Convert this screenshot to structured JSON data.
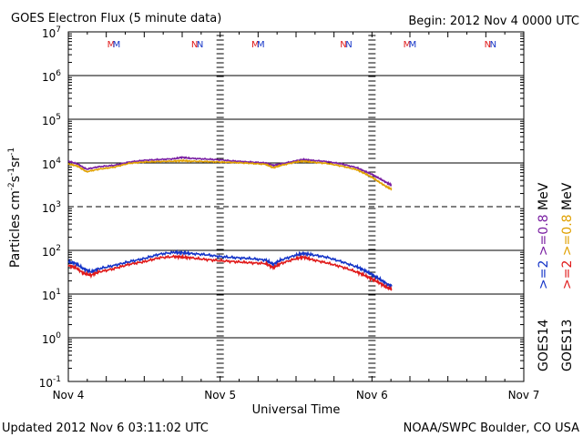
{
  "chart_data": {
    "type": "line",
    "title": "GOES Electron Flux (5 minute data)",
    "begin_label": "Begin: 2012 Nov 4 0000 UTC",
    "xlabel": "Universal Time",
    "ylabel_parts": [
      "Particles cm",
      "-2",
      "s",
      "-1",
      "sr",
      "-1"
    ],
    "y_scale": "log",
    "ylim": [
      -1,
      7
    ],
    "xlim": [
      0,
      3
    ],
    "x_ticks": [
      {
        "x": 0,
        "label": "Nov 4"
      },
      {
        "x": 1,
        "label": "Nov 5"
      },
      {
        "x": 2,
        "label": "Nov 6"
      },
      {
        "x": 3,
        "label": "Nov 7"
      }
    ],
    "y_ticks": [
      {
        "exp": 7,
        "label": "10",
        "sup": "7"
      },
      {
        "exp": 6,
        "label": "10",
        "sup": "6"
      },
      {
        "exp": 5,
        "label": "10",
        "sup": "5"
      },
      {
        "exp": 4,
        "label": "10",
        "sup": "4"
      },
      {
        "exp": 3,
        "label": "10",
        "sup": "3"
      },
      {
        "exp": 2,
        "label": "10",
        "sup": "2"
      },
      {
        "exp": 1,
        "label": "10",
        "sup": "1"
      },
      {
        "exp": 0,
        "label": "10",
        "sup": "0"
      },
      {
        "exp": -1,
        "label": "10",
        "sup": "-1"
      }
    ],
    "threshold_exp": 3,
    "markers": [
      {
        "x": 0.3,
        "text": "M"
      },
      {
        "x": 0.85,
        "text": "N"
      },
      {
        "x": 1.25,
        "text": "M"
      },
      {
        "x": 1.83,
        "text": "N"
      },
      {
        "x": 2.25,
        "text": "M"
      },
      {
        "x": 2.78,
        "text": "N"
      }
    ],
    "series": [
      {
        "name": ">=0.8 MeV",
        "satellite": "GOES14",
        "color": "#7a1fa2",
        "x": [
          0,
          0.06,
          0.12,
          0.2,
          0.3,
          0.4,
          0.5,
          0.6,
          0.7,
          0.75,
          0.8,
          0.9,
          1.0,
          1.1,
          1.2,
          1.3,
          1.35,
          1.4,
          1.5,
          1.55,
          1.6,
          1.7,
          1.8,
          1.9,
          1.95,
          2.0,
          2.05,
          2.1,
          2.13
        ],
        "values": [
          11000,
          9500,
          7200,
          8200,
          8800,
          10500,
          11500,
          12000,
          12500,
          13500,
          12800,
          12300,
          11800,
          11000,
          10500,
          10000,
          8800,
          9500,
          11200,
          12000,
          11500,
          10800,
          9500,
          7800,
          6500,
          5500,
          4400,
          3500,
          3100
        ]
      },
      {
        "name": ">=0.8 MeV",
        "satellite": "GOES13",
        "color": "#e0a000",
        "x": [
          0,
          0.06,
          0.12,
          0.2,
          0.3,
          0.4,
          0.5,
          0.6,
          0.7,
          0.75,
          0.8,
          0.9,
          1.0,
          1.1,
          1.2,
          1.3,
          1.35,
          1.4,
          1.5,
          1.55,
          1.6,
          1.7,
          1.8,
          1.9,
          1.95,
          2.0,
          2.05,
          2.1,
          2.13
        ],
        "values": [
          9500,
          8500,
          6300,
          7200,
          8000,
          9800,
          10500,
          10800,
          11000,
          11300,
          11000,
          10800,
          10500,
          10200,
          9800,
          9300,
          7800,
          8800,
          10500,
          11000,
          10500,
          9800,
          8500,
          7000,
          5800,
          4700,
          3600,
          2800,
          2500
        ]
      },
      {
        "name": ">=2 MeV",
        "satellite": "GOES14",
        "color": "#1535c8",
        "x": [
          0,
          0.05,
          0.1,
          0.15,
          0.2,
          0.3,
          0.4,
          0.5,
          0.6,
          0.7,
          0.75,
          0.8,
          0.9,
          1.0,
          1.1,
          1.2,
          1.3,
          1.35,
          1.4,
          1.5,
          1.55,
          1.6,
          1.7,
          1.8,
          1.9,
          1.95,
          2.0,
          2.05,
          2.1,
          2.13
        ],
        "values": [
          55,
          50,
          38,
          32,
          38,
          45,
          55,
          65,
          82,
          90,
          88,
          85,
          80,
          72,
          68,
          65,
          60,
          48,
          60,
          78,
          85,
          80,
          70,
          55,
          42,
          35,
          28,
          22,
          17,
          15
        ]
      },
      {
        "name": ">=2 MeV",
        "satellite": "GOES13",
        "color": "#e01a1a",
        "x": [
          0,
          0.05,
          0.1,
          0.15,
          0.2,
          0.3,
          0.4,
          0.5,
          0.6,
          0.7,
          0.75,
          0.8,
          0.9,
          1.0,
          1.1,
          1.2,
          1.3,
          1.35,
          1.4,
          1.5,
          1.55,
          1.6,
          1.7,
          1.8,
          1.9,
          1.95,
          2.0,
          2.05,
          2.1,
          2.13
        ],
        "values": [
          45,
          40,
          30,
          27,
          32,
          38,
          48,
          55,
          68,
          72,
          70,
          68,
          62,
          58,
          55,
          52,
          50,
          40,
          50,
          65,
          70,
          62,
          52,
          42,
          32,
          27,
          22,
          18,
          14,
          13
        ]
      }
    ],
    "legend_labels": [
      {
        "text": ">=2",
        "color": "#1535c8",
        "column": 1
      },
      {
        "text": ">=0.8",
        "color": "#7a1fa2",
        "column": 1
      },
      {
        "text": "MeV",
        "color": "#000000",
        "column": 1
      },
      {
        "text": ">=2",
        "color": "#e01a1a",
        "column": 2
      },
      {
        "text": ">=0.8",
        "color": "#e0a000",
        "column": 2
      },
      {
        "text": "MeV",
        "color": "#000000",
        "column": 2
      }
    ],
    "satellite_labels": [
      {
        "text": "GOES14",
        "column": 1
      },
      {
        "text": "GOES13",
        "column": 2
      }
    ]
  },
  "footer": {
    "updated": "Updated 2012 Nov  6 03:11:02 UTC",
    "source": "NOAA/SWPC Boulder, CO USA"
  }
}
